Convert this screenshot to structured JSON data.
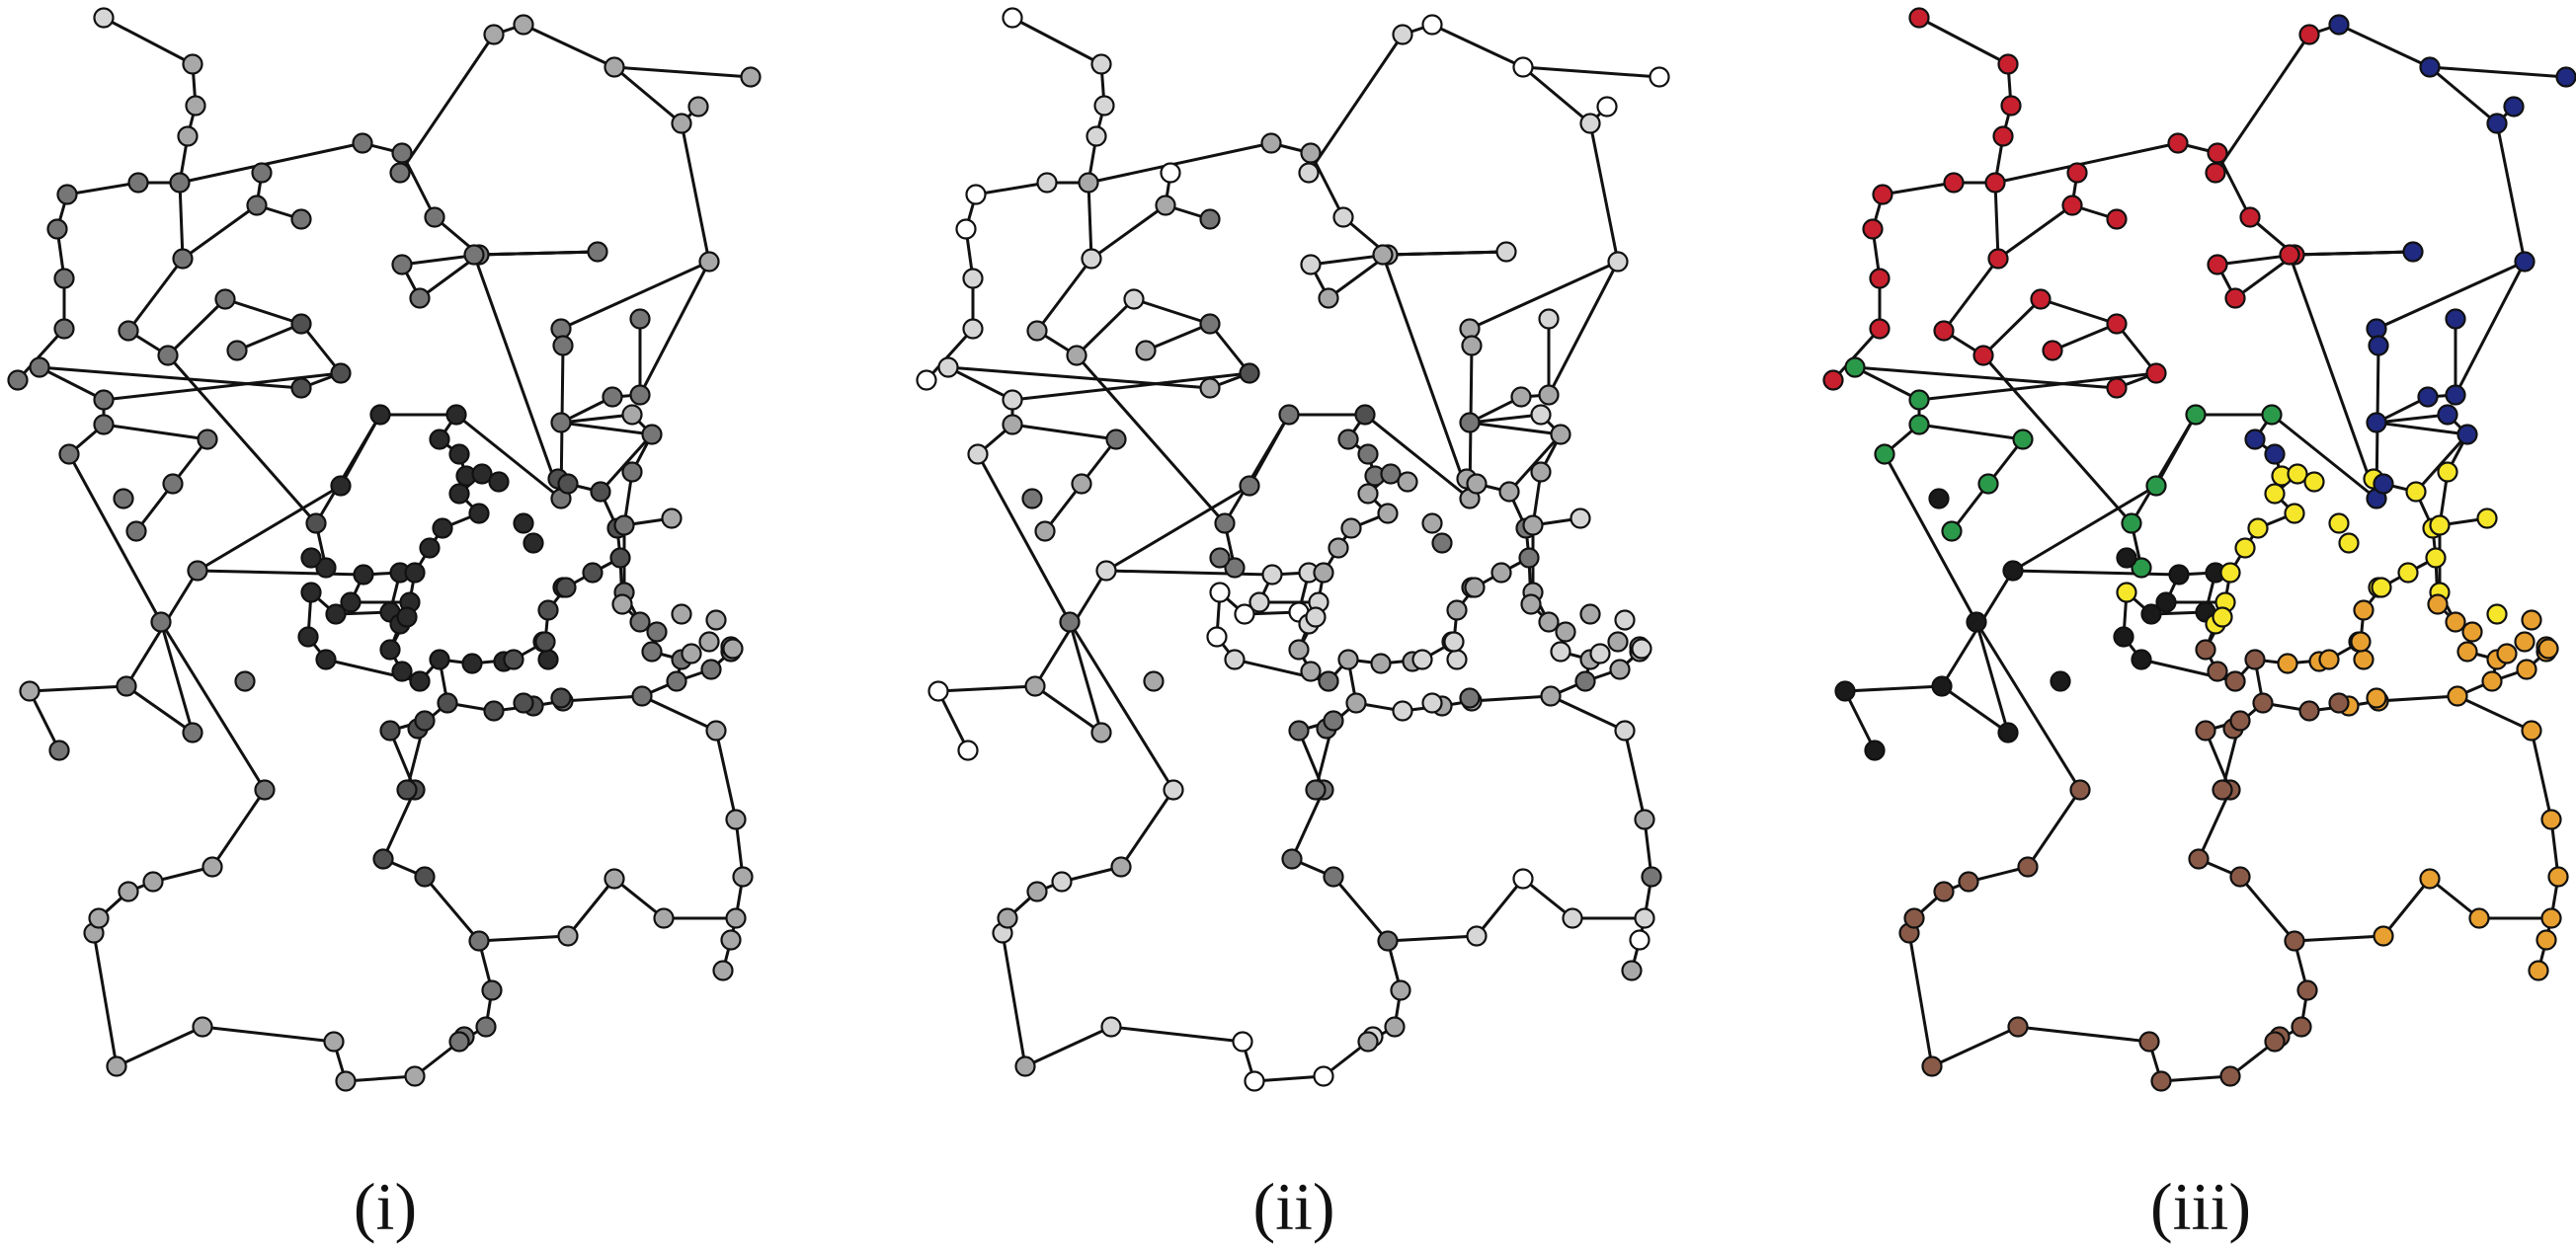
{
  "panels": [
    {
      "id": "i",
      "caption": "(i)",
      "color_mode": "gray-by-depth"
    },
    {
      "id": "ii",
      "caption": "(ii)",
      "color_mode": "gray-by-degree"
    },
    {
      "id": "iii",
      "caption": "(iii)",
      "color_mode": "community"
    }
  ],
  "colors": {
    "gray": [
      "#ffffff",
      "#d6d6d6",
      "#a8a8a8",
      "#767676",
      "#505050",
      "#2a2a2a"
    ],
    "community": {
      "red": "#c8202e",
      "navy": "#1f2a80",
      "green": "#2a9a4a",
      "yellow": "#f5e62a",
      "orange": "#e8a030",
      "brown": "#8a5a48",
      "black": "#1a1a1a"
    }
  }
}
